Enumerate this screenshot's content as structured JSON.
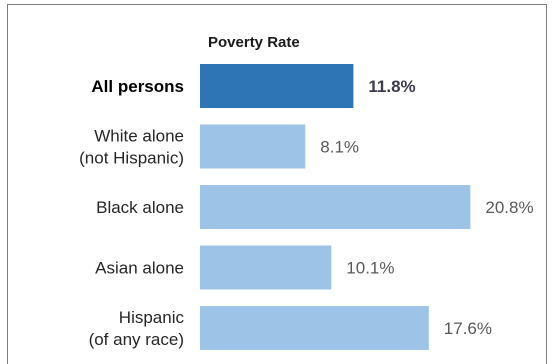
{
  "chart_data": {
    "type": "bar",
    "orientation": "horizontal",
    "title": "Poverty Rate",
    "categories": [
      [
        "All persons"
      ],
      [
        "White alone",
        "(not Hispanic)"
      ],
      [
        "Black alone"
      ],
      [
        "Asian alone"
      ],
      [
        "Hispanic",
        "(of any race)"
      ]
    ],
    "values": [
      11.8,
      8.1,
      20.8,
      10.1,
      17.6
    ],
    "value_labels": [
      "11.8%",
      "8.1%",
      "20.8%",
      "10.1%",
      "17.6%"
    ],
    "highlight_index": 0,
    "xlim": [
      0,
      21
    ],
    "xlabel": "",
    "ylabel": "",
    "grid": false,
    "legend": "none",
    "colors": {
      "highlight": "#2e75b6",
      "bar": "#9dc3e6"
    }
  }
}
